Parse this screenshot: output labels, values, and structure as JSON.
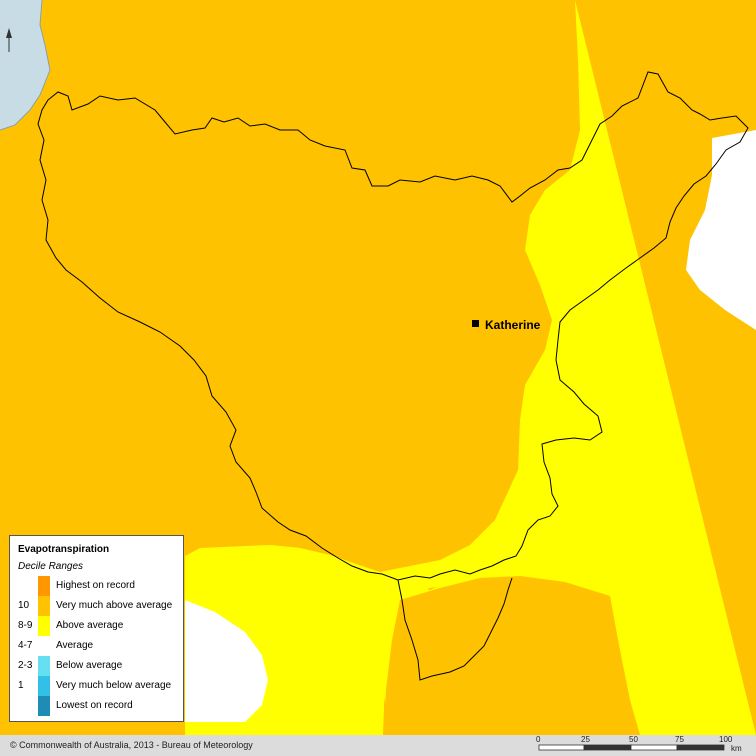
{
  "map": {
    "colors": {
      "very_much_above": "#FFC200",
      "highest": "#FF9800",
      "above": "#FFFF00",
      "average": "#FFFFFF",
      "below": "#66E0F0",
      "very_much_below": "#33C0E6",
      "lowest": "#1E8CB4",
      "water": "#C8DCE6",
      "boundary": "#000000",
      "footer": "#DCDCDC"
    },
    "town": {
      "name": "Katherine"
    },
    "north_arrow_icon": "north-arrow-icon"
  },
  "legend": {
    "title": "Evapotranspiration",
    "subtitle": "Decile Ranges",
    "items": [
      {
        "code": "",
        "label": "Highest on record",
        "color": "#FF9800"
      },
      {
        "code": "10",
        "label": "Very much above average",
        "color": "#FFC200"
      },
      {
        "code": "8-9",
        "label": "Above average",
        "color": "#FFFF00"
      },
      {
        "code": "4-7",
        "label": "Average",
        "color": "#FFFFFF"
      },
      {
        "code": "2-3",
        "label": "Below average",
        "color": "#66E0F0"
      },
      {
        "code": "1",
        "label": "Very much below average",
        "color": "#33C0E6"
      },
      {
        "code": "",
        "label": "Lowest on record",
        "color": "#1E8CB4"
      }
    ]
  },
  "footer": {
    "copyright": "© Commonwealth of Australia, 2013 - Bureau of Meteorology",
    "scale": {
      "ticks": [
        "0",
        "25",
        "50",
        "75",
        "100"
      ],
      "unit": "km"
    }
  }
}
